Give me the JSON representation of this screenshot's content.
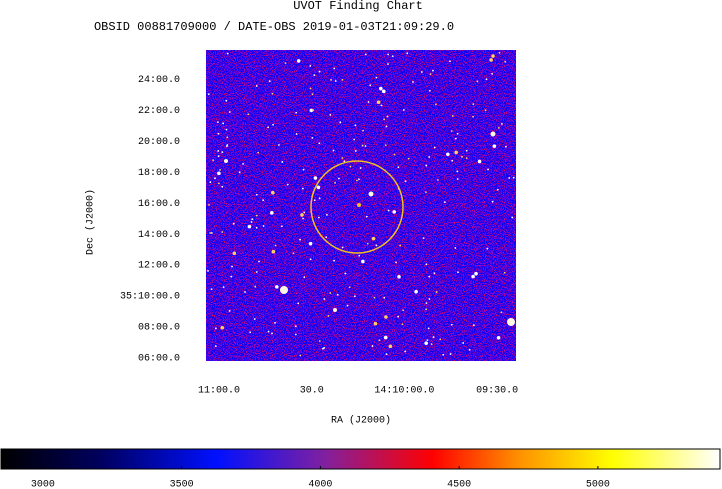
{
  "chart_data": {
    "type": "image",
    "title": "UVOT Finding Chart",
    "subtitle": "OBSID 00881709000 / DATE-OBS 2019-01-03T21:09:29.0",
    "x_label": "RA (J2000)",
    "y_label": "Dec (J2000)",
    "xlim": [
      51064.2,
      50963.9
    ],
    "xticks": [
      {
        "value": 51060,
        "label": "11:00.0"
      },
      {
        "value": 51030,
        "label": "30.0"
      },
      {
        "value": 51000,
        "label": "14:10:00.0"
      },
      {
        "value": 50970,
        "label": "09:30.0"
      }
    ],
    "ylim": [
      2105.8,
      2125.9
    ],
    "yticks": [
      {
        "value": 2124,
        "label": "24:00.0"
      },
      {
        "value": 2122,
        "label": "22:00.0"
      },
      {
        "value": 2120,
        "label": "20:00.0"
      },
      {
        "value": 2118,
        "label": "18:00.0"
      },
      {
        "value": 2116,
        "label": "16:00.0"
      },
      {
        "value": 2114,
        "label": "14:00.0"
      },
      {
        "value": 2112,
        "label": "12:00.0"
      },
      {
        "value": 2110,
        "label": "35:10:00.0"
      },
      {
        "value": 2108,
        "label": "08:00.0"
      },
      {
        "value": 2106,
        "label": "06:00.0"
      }
    ],
    "clim": [
      2849,
      5440
    ],
    "cticks": [
      3000,
      3500,
      4000,
      4500,
      5000
    ]
  }
}
